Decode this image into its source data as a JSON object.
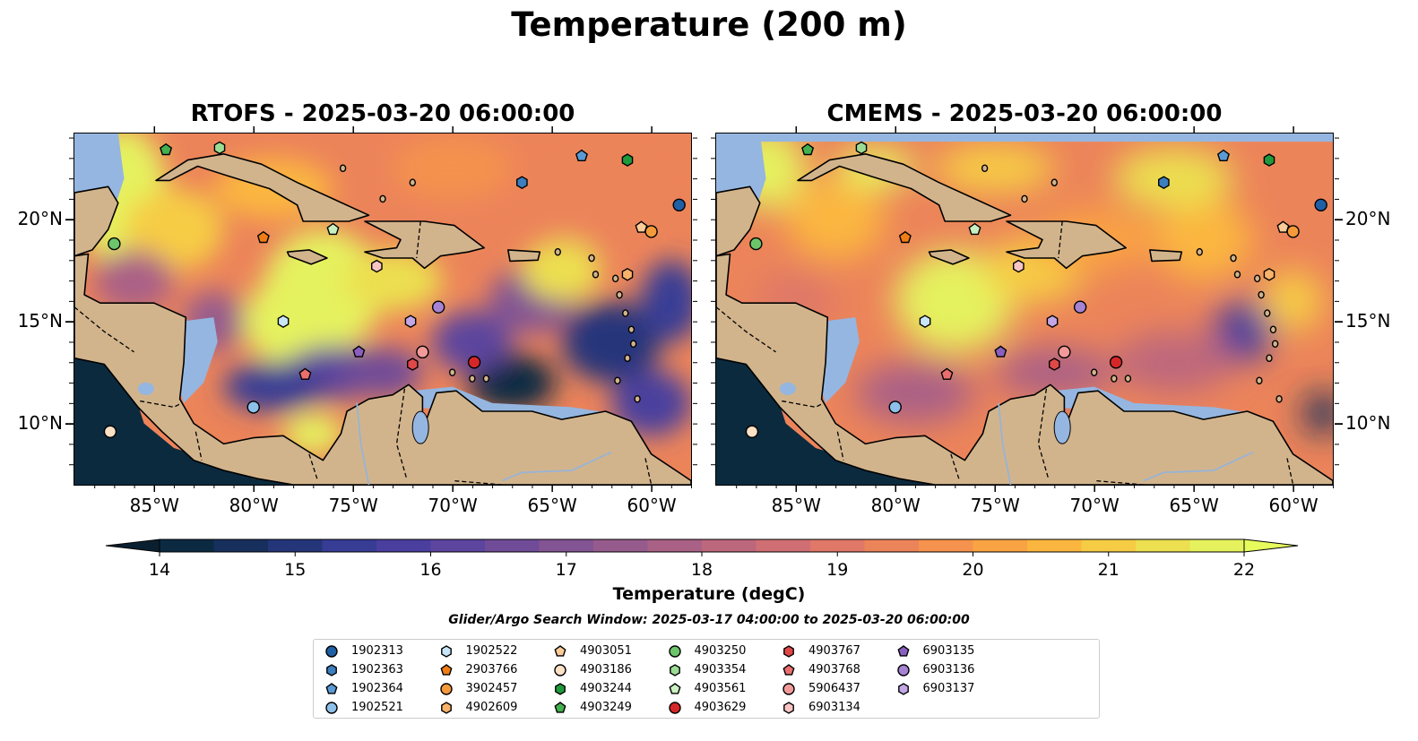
{
  "title": "Temperature (200 m)",
  "panels": [
    {
      "id": "rtofs",
      "title": "RTOFS - 2025-03-20 06:00:00"
    },
    {
      "id": "cmems",
      "title": "CMEMS - 2025-03-20 06:00:00"
    }
  ],
  "axes": {
    "lon_ticks": [
      "85°W",
      "80°W",
      "75°W",
      "70°W",
      "65°W",
      "60°W"
    ],
    "lat_ticks": [
      "20°N",
      "15°N",
      "10°N"
    ]
  },
  "colorbar": {
    "label": "Temperature (degC)",
    "ticks": [
      "14",
      "15",
      "16",
      "17",
      "18",
      "19",
      "20",
      "21",
      "22"
    ],
    "min": 14,
    "max": 22,
    "colors": [
      "#0b2a42",
      "#172f5c",
      "#25357a",
      "#373c95",
      "#4a3f9e",
      "#5c459e",
      "#704c98",
      "#835493",
      "#965b8d",
      "#aa6186",
      "#bd677d",
      "#cf6f73",
      "#df7867",
      "#ec845a",
      "#f5924d",
      "#f9a343",
      "#fbb63f",
      "#f6cc44",
      "#ecdf50",
      "#e5f25e"
    ],
    "under_color": "#0a1f2f",
    "over_color": "#e8fb5c"
  },
  "search_window": "Glider/Argo Search Window: 2025-03-17 04:00:00 to 2025-03-20 06:00:00",
  "legend": [
    {
      "id": "1902313",
      "shape": "circle",
      "color": "#1f5fa6"
    },
    {
      "id": "1902363",
      "shape": "hexagon",
      "color": "#3c7fbf"
    },
    {
      "id": "1902364",
      "shape": "pentagon",
      "color": "#5a9bd5"
    },
    {
      "id": "1902521",
      "shape": "circle",
      "color": "#8dc1ea"
    },
    {
      "id": "1902522",
      "shape": "hexagon",
      "color": "#c9e6f8"
    },
    {
      "id": "2903766",
      "shape": "pentagon",
      "color": "#f07d17"
    },
    {
      "id": "3902457",
      "shape": "circle",
      "color": "#f59a3b"
    },
    {
      "id": "4902609",
      "shape": "hexagon",
      "color": "#f9b26a"
    },
    {
      "id": "4903051",
      "shape": "pentagon",
      "color": "#fbcb98"
    },
    {
      "id": "4903186",
      "shape": "circle",
      "color": "#fde1c5"
    },
    {
      "id": "4903244",
      "shape": "hexagon",
      "color": "#1f9a3b"
    },
    {
      "id": "4903249",
      "shape": "pentagon",
      "color": "#44b04f"
    },
    {
      "id": "4903250",
      "shape": "circle",
      "color": "#6cc56a"
    },
    {
      "id": "4903354",
      "shape": "hexagon",
      "color": "#9bdc95"
    },
    {
      "id": "4903561",
      "shape": "pentagon",
      "color": "#c9f0c1"
    },
    {
      "id": "4903629",
      "shape": "circle",
      "color": "#d62728"
    },
    {
      "id": "4903767",
      "shape": "hexagon",
      "color": "#e04848"
    },
    {
      "id": "4903768",
      "shape": "pentagon",
      "color": "#ea6e6e"
    },
    {
      "id": "5906437",
      "shape": "circle",
      "color": "#f29a9a"
    },
    {
      "id": "6903134",
      "shape": "hexagon",
      "color": "#f9c4c4"
    },
    {
      "id": "6903135",
      "shape": "pentagon",
      "color": "#8a5fbf"
    },
    {
      "id": "6903136",
      "shape": "circle",
      "color": "#a783d4"
    },
    {
      "id": "6903137",
      "shape": "hexagon",
      "color": "#c3a6e6"
    }
  ],
  "stations": [
    {
      "id": "1902313",
      "lon": -58.6,
      "lat": 20.7
    },
    {
      "id": "1902363",
      "lon": -66.5,
      "lat": 21.8
    },
    {
      "id": "1902364",
      "lon": -63.5,
      "lat": 23.1
    },
    {
      "id": "1902521",
      "lon": -80.0,
      "lat": 10.8
    },
    {
      "id": "1902522",
      "lon": -78.5,
      "lat": 15.0
    },
    {
      "id": "2903766",
      "lon": -79.5,
      "lat": 19.1
    },
    {
      "id": "3902457",
      "lon": -60.0,
      "lat": 19.4
    },
    {
      "id": "4902609",
      "lon": -61.2,
      "lat": 17.3
    },
    {
      "id": "4903051",
      "lon": -60.5,
      "lat": 19.6
    },
    {
      "id": "4903186",
      "lon": -87.2,
      "lat": 9.6
    },
    {
      "id": "4903244",
      "lon": -61.2,
      "lat": 22.9
    },
    {
      "id": "4903249",
      "lon": -84.4,
      "lat": 23.4
    },
    {
      "id": "4903250",
      "lon": -87.0,
      "lat": 18.8
    },
    {
      "id": "4903354",
      "lon": -81.7,
      "lat": 23.5
    },
    {
      "id": "4903561",
      "lon": -76.0,
      "lat": 19.5
    },
    {
      "id": "4903629",
      "lon": -68.9,
      "lat": 13.0
    },
    {
      "id": "4903767",
      "lon": -72.0,
      "lat": 12.9
    },
    {
      "id": "4903768",
      "lon": -77.4,
      "lat": 12.4
    },
    {
      "id": "5906437",
      "lon": -71.5,
      "lat": 13.5
    },
    {
      "id": "6903134",
      "lon": -73.8,
      "lat": 17.7
    },
    {
      "id": "6903135",
      "lon": -74.7,
      "lat": 13.5
    },
    {
      "id": "6903136",
      "lon": -70.7,
      "lat": 15.7
    },
    {
      "id": "6903137",
      "lon": -72.1,
      "lat": 15.0
    }
  ],
  "map_extent": {
    "lon_min": -89.0,
    "lon_max": -58.0,
    "lat_min": 7.0,
    "lat_max": 24.2
  }
}
